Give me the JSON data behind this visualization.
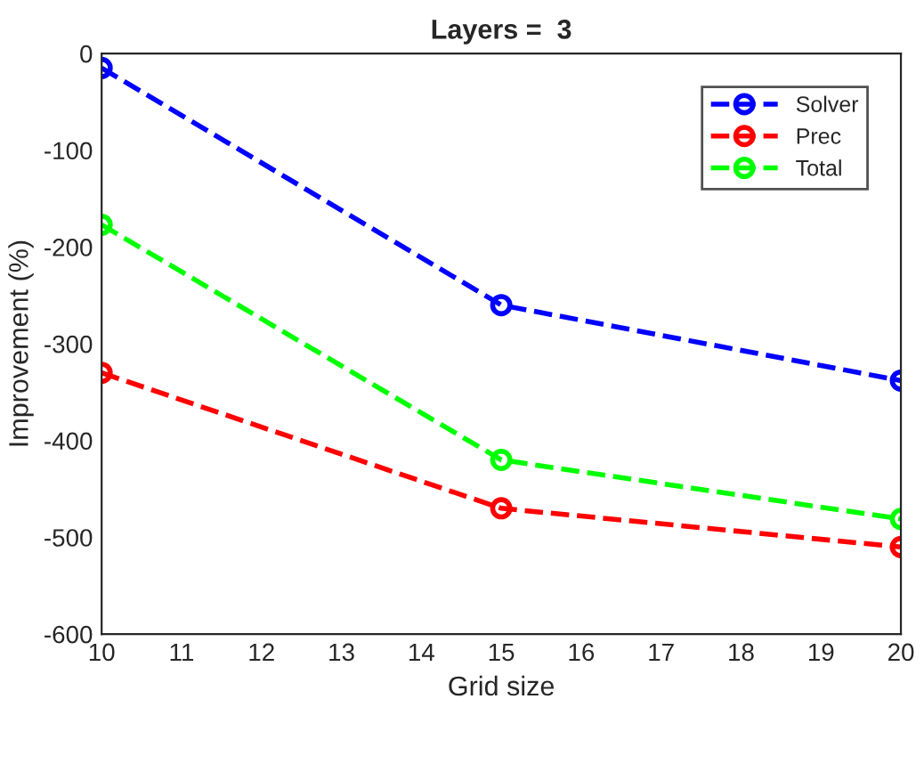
{
  "chart_data": {
    "type": "line",
    "title": "Layers =  3",
    "xlabel": "Grid size",
    "ylabel": "Improvement (%)",
    "x": [
      10,
      15,
      20
    ],
    "series": [
      {
        "name": "Solver",
        "color": "#0000ff",
        "values": [
          -15,
          -260,
          -338
        ]
      },
      {
        "name": "Prec",
        "color": "#ff0000",
        "values": [
          -330,
          -470,
          -510
        ]
      },
      {
        "name": "Total",
        "color": "#00ff00",
        "values": [
          -177,
          -420,
          -481
        ]
      }
    ],
    "xlim": [
      10,
      20
    ],
    "xticks": [
      10,
      11,
      12,
      13,
      14,
      15,
      16,
      17,
      18,
      19,
      20
    ],
    "ylim": [
      -600,
      0
    ],
    "yticks": [
      -600,
      -500,
      -400,
      -300,
      -200,
      -100,
      0
    ],
    "grid": false,
    "legend": "top right",
    "marker": "circle",
    "line_style": "dashed"
  }
}
